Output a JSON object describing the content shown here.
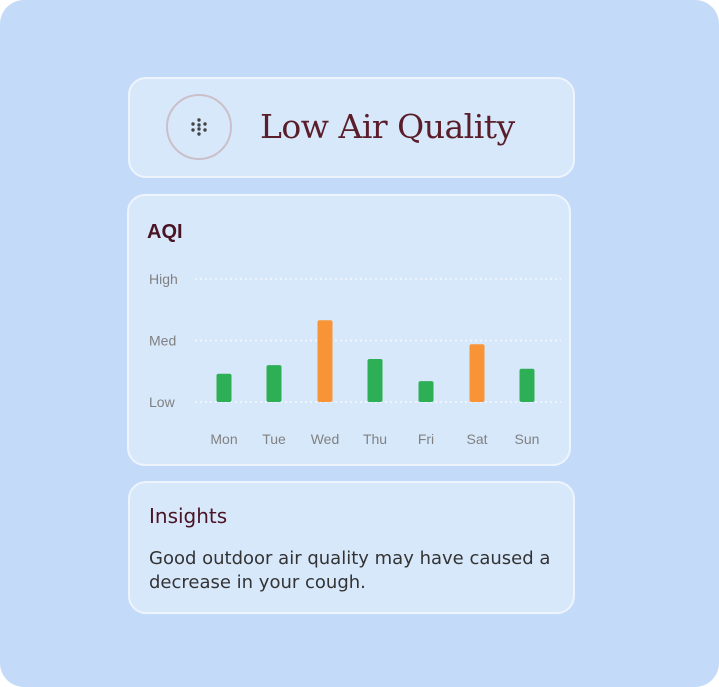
{
  "header": {
    "title": "Low Air Quality",
    "icon": "dots-cluster-icon"
  },
  "chart_card": {
    "title": "AQI"
  },
  "chart_data": {
    "type": "bar",
    "title": "AQI",
    "y_levels": [
      "Low",
      "Med",
      "High"
    ],
    "ylim": [
      0,
      2
    ],
    "categories": [
      "Mon",
      "Tue",
      "Wed",
      "Thu",
      "Fri",
      "Sat",
      "Sun"
    ],
    "values": [
      0.46,
      0.6,
      1.33,
      0.7,
      0.34,
      0.94,
      0.54
    ],
    "bar_colors": [
      "#2db055",
      "#2db055",
      "#f99436",
      "#2db055",
      "#2db055",
      "#f99436",
      "#2db055"
    ],
    "grid": "dotted horizontal"
  },
  "insights": {
    "title": "Insights",
    "text": "Good outdoor air quality may have caused a decrease in your cough."
  }
}
